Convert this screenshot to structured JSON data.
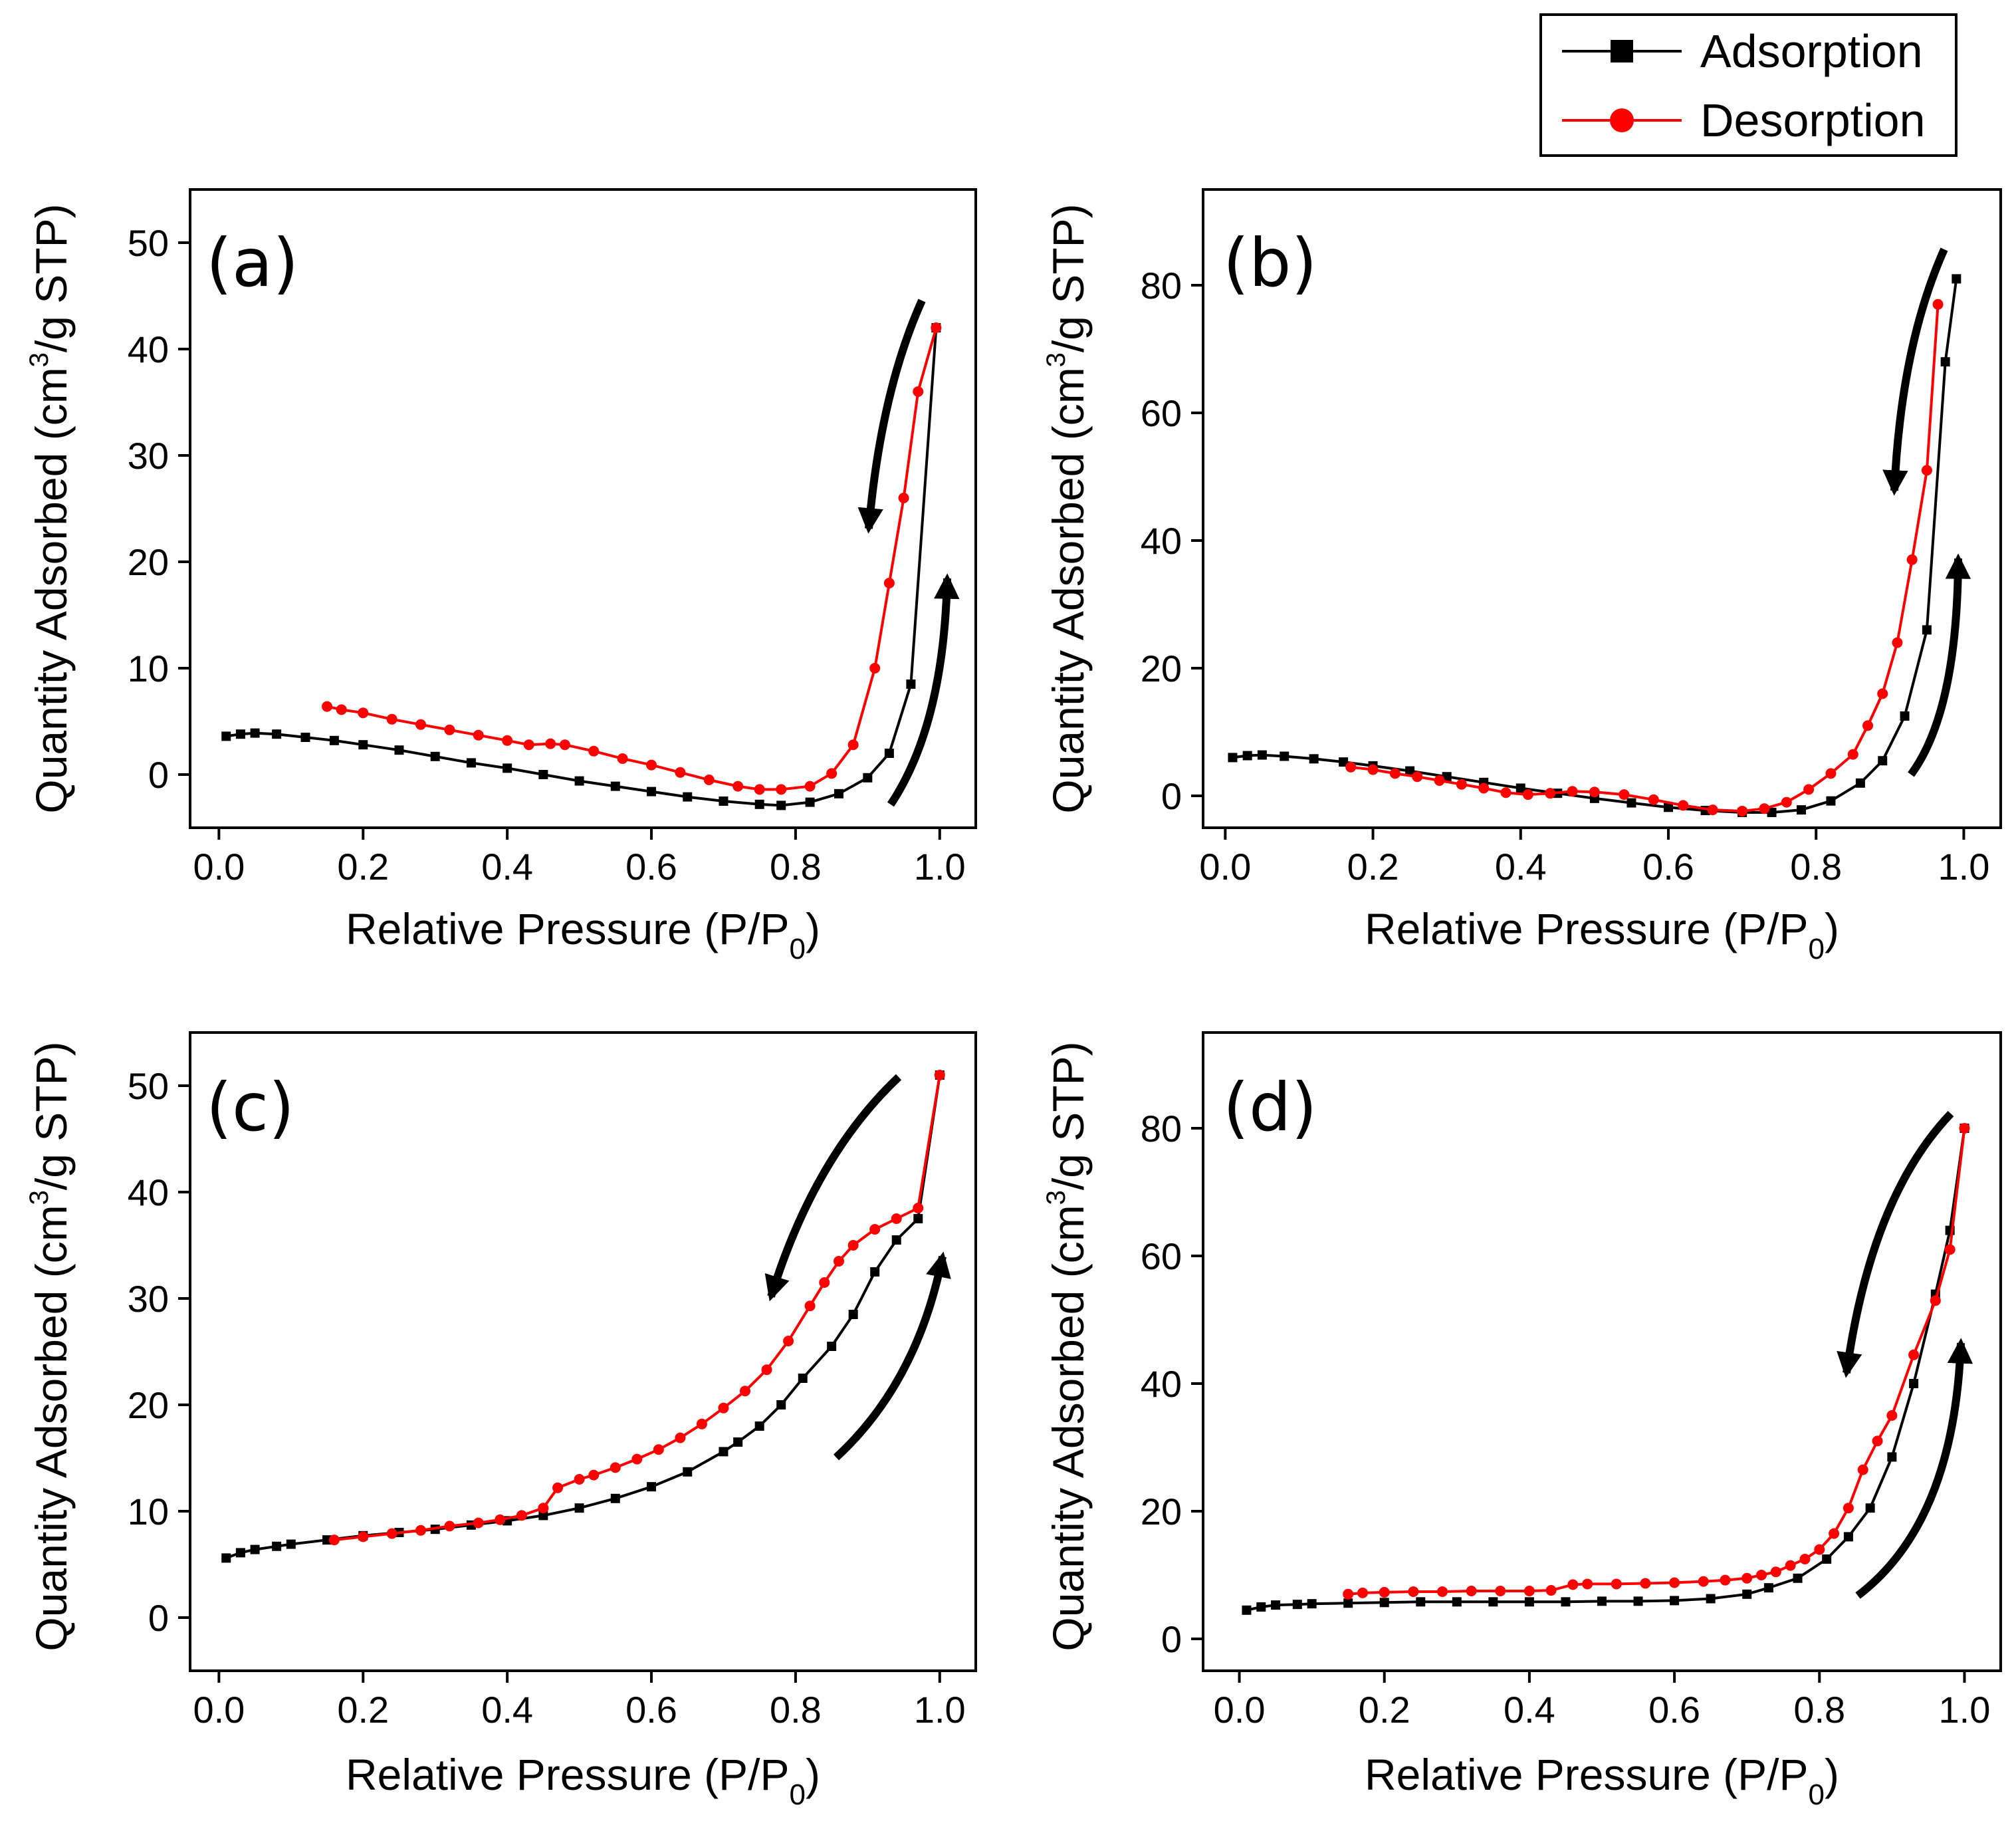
{
  "legend": {
    "items": [
      {
        "label": "Adsorption",
        "color": "#000000",
        "marker": "square"
      },
      {
        "label": "Desorption",
        "color": "#ff0000",
        "marker": "circle"
      }
    ]
  },
  "axis_text": {
    "xlabel_main": "Relative Pressure (P/P",
    "xlabel_sub": "0",
    "xlabel_end": ")",
    "ylabel_main": "Quantity Adsorbed (cm",
    "ylabel_sup": "3",
    "ylabel_end": "/g STP)"
  },
  "chart_data": [
    {
      "type": "line",
      "panel": "(a)",
      "xlabel": "Relative Pressure (P/P0)",
      "ylabel": "Quantity Adsorbed (cm3/g STP)",
      "xlim": [
        -0.04,
        1.05
      ],
      "ylim": [
        -5,
        55
      ],
      "xticks": [
        "0.0",
        "0.2",
        "0.4",
        "0.6",
        "0.8",
        "1.0"
      ],
      "yticks": [
        "0",
        "10",
        "20",
        "30",
        "40",
        "50"
      ],
      "legend": "top-right",
      "series": [
        {
          "name": "Adsorption",
          "color": "#000000",
          "marker": "square",
          "x": [
            0.01,
            0.03,
            0.05,
            0.08,
            0.12,
            0.16,
            0.2,
            0.25,
            0.3,
            0.35,
            0.4,
            0.45,
            0.5,
            0.55,
            0.6,
            0.65,
            0.7,
            0.75,
            0.78,
            0.82,
            0.86,
            0.9,
            0.93,
            0.96,
            0.995
          ],
          "y": [
            3.6,
            3.8,
            3.9,
            3.8,
            3.5,
            3.2,
            2.8,
            2.3,
            1.7,
            1.1,
            0.6,
            0.0,
            -0.6,
            -1.1,
            -1.6,
            -2.1,
            -2.5,
            -2.8,
            -2.9,
            -2.6,
            -1.8,
            -0.3,
            2.0,
            8.5,
            42
          ]
        },
        {
          "name": "Desorption",
          "color": "#ff0000",
          "marker": "circle",
          "x": [
            0.995,
            0.97,
            0.95,
            0.93,
            0.91,
            0.88,
            0.85,
            0.82,
            0.78,
            0.75,
            0.72,
            0.68,
            0.64,
            0.6,
            0.56,
            0.52,
            0.48,
            0.46,
            0.43,
            0.4,
            0.36,
            0.32,
            0.28,
            0.24,
            0.2,
            0.17,
            0.15
          ],
          "y": [
            42,
            36,
            26,
            18,
            10,
            2.8,
            0.1,
            -1.1,
            -1.4,
            -1.4,
            -1.1,
            -0.5,
            0.2,
            0.9,
            1.5,
            2.2,
            2.8,
            2.9,
            2.8,
            3.2,
            3.7,
            4.2,
            4.7,
            5.2,
            5.8,
            6.1,
            6.4
          ]
        }
      ]
    },
    {
      "type": "line",
      "panel": "(b)",
      "xlabel": "Relative Pressure (P/P0)",
      "ylabel": "Quantity Adsorbed (cm3/g STP)",
      "xlim": [
        -0.03,
        1.05
      ],
      "ylim": [
        -5,
        95
      ],
      "xticks": [
        "0.0",
        "0.2",
        "0.4",
        "0.6",
        "0.8",
        "1.0"
      ],
      "yticks": [
        "0",
        "20",
        "40",
        "60",
        "80"
      ],
      "series": [
        {
          "name": "Adsorption",
          "color": "#000000",
          "marker": "square",
          "x": [
            0.01,
            0.03,
            0.05,
            0.08,
            0.12,
            0.16,
            0.2,
            0.25,
            0.3,
            0.35,
            0.4,
            0.45,
            0.5,
            0.55,
            0.6,
            0.65,
            0.7,
            0.74,
            0.78,
            0.82,
            0.86,
            0.89,
            0.92,
            0.95,
            0.975,
            0.99
          ],
          "y": [
            6.0,
            6.3,
            6.4,
            6.2,
            5.8,
            5.3,
            4.7,
            3.9,
            3.0,
            2.1,
            1.2,
            0.4,
            -0.4,
            -1.1,
            -1.8,
            -2.3,
            -2.6,
            -2.6,
            -2.2,
            -0.8,
            2.0,
            5.5,
            12.5,
            26,
            68,
            81
          ]
        },
        {
          "name": "Desorption",
          "color": "#ff0000",
          "marker": "circle",
          "x": [
            0.965,
            0.95,
            0.93,
            0.91,
            0.89,
            0.87,
            0.85,
            0.82,
            0.79,
            0.76,
            0.73,
            0.7,
            0.66,
            0.62,
            0.58,
            0.54,
            0.5,
            0.47,
            0.44,
            0.41,
            0.38,
            0.35,
            0.32,
            0.29,
            0.26,
            0.23,
            0.2,
            0.17
          ],
          "y": [
            77,
            51,
            37,
            24,
            16,
            11,
            6.5,
            3.5,
            1.0,
            -1.0,
            -2.0,
            -2.4,
            -2.2,
            -1.5,
            -0.6,
            0.2,
            0.6,
            0.7,
            0.4,
            0.2,
            0.5,
            1.2,
            1.8,
            2.4,
            3.0,
            3.5,
            4.1,
            4.5
          ]
        }
      ]
    },
    {
      "type": "line",
      "panel": "(c)",
      "xlabel": "Relative Pressure (P/P0)",
      "ylabel": "Quantity Adsorbed (cm3/g STP)",
      "xlim": [
        -0.04,
        1.05
      ],
      "ylim": [
        -5,
        55
      ],
      "xticks": [
        "0.0",
        "0.2",
        "0.4",
        "0.6",
        "0.8",
        "1.0"
      ],
      "yticks": [
        "0",
        "10",
        "20",
        "30",
        "40",
        "50"
      ],
      "series": [
        {
          "name": "Adsorption",
          "color": "#000000",
          "marker": "square",
          "x": [
            0.01,
            0.03,
            0.05,
            0.08,
            0.1,
            0.15,
            0.2,
            0.25,
            0.3,
            0.35,
            0.4,
            0.45,
            0.5,
            0.55,
            0.6,
            0.65,
            0.7,
            0.72,
            0.75,
            0.78,
            0.81,
            0.85,
            0.88,
            0.91,
            0.94,
            0.97,
            1.0
          ],
          "y": [
            5.6,
            6.1,
            6.4,
            6.7,
            6.9,
            7.3,
            7.7,
            8.0,
            8.3,
            8.7,
            9.1,
            9.6,
            10.3,
            11.2,
            12.3,
            13.7,
            15.6,
            16.5,
            18.0,
            20.0,
            22.5,
            25.5,
            28.5,
            32.5,
            35.5,
            37.5,
            51
          ]
        },
        {
          "name": "Desorption",
          "color": "#ff0000",
          "marker": "circle",
          "x": [
            1.0,
            0.97,
            0.94,
            0.91,
            0.88,
            0.86,
            0.84,
            0.82,
            0.79,
            0.76,
            0.73,
            0.7,
            0.67,
            0.64,
            0.61,
            0.58,
            0.55,
            0.52,
            0.5,
            0.47,
            0.45,
            0.42,
            0.39,
            0.36,
            0.32,
            0.28,
            0.24,
            0.2,
            0.16
          ],
          "y": [
            51,
            38.5,
            37.5,
            36.5,
            35.0,
            33.5,
            31.5,
            29.3,
            26.0,
            23.3,
            21.3,
            19.7,
            18.2,
            16.9,
            15.8,
            14.9,
            14.1,
            13.4,
            13.0,
            12.2,
            10.3,
            9.6,
            9.2,
            8.9,
            8.6,
            8.2,
            7.9,
            7.6,
            7.3
          ]
        }
      ]
    },
    {
      "type": "line",
      "panel": "(d)",
      "xlabel": "Relative Pressure (P/P0)",
      "ylabel": "Quantity Adsorbed (cm3/g STP)",
      "xlim": [
        -0.05,
        1.05
      ],
      "ylim": [
        -5,
        95
      ],
      "xticks": [
        "0.0",
        "0.2",
        "0.4",
        "0.6",
        "0.8",
        "1.0"
      ],
      "yticks": [
        "0",
        "20",
        "40",
        "60",
        "80"
      ],
      "series": [
        {
          "name": "Adsorption",
          "color": "#000000",
          "marker": "square",
          "x": [
            0.01,
            0.03,
            0.05,
            0.08,
            0.1,
            0.15,
            0.2,
            0.25,
            0.3,
            0.35,
            0.4,
            0.45,
            0.5,
            0.55,
            0.6,
            0.65,
            0.7,
            0.73,
            0.77,
            0.81,
            0.84,
            0.87,
            0.9,
            0.93,
            0.96,
            0.98,
            1.0
          ],
          "y": [
            4.5,
            5.0,
            5.3,
            5.4,
            5.5,
            5.6,
            5.7,
            5.8,
            5.8,
            5.8,
            5.8,
            5.8,
            5.9,
            5.9,
            6.0,
            6.3,
            7.0,
            8.0,
            9.5,
            12.5,
            16,
            20.5,
            28.5,
            40,
            54,
            64,
            80
          ]
        },
        {
          "name": "Desorption",
          "color": "#ff0000",
          "marker": "circle",
          "x": [
            1.0,
            0.98,
            0.96,
            0.93,
            0.9,
            0.88,
            0.86,
            0.84,
            0.82,
            0.8,
            0.78,
            0.76,
            0.74,
            0.72,
            0.7,
            0.67,
            0.64,
            0.6,
            0.56,
            0.52,
            0.48,
            0.46,
            0.43,
            0.4,
            0.36,
            0.32,
            0.28,
            0.24,
            0.2,
            0.17,
            0.15
          ],
          "y": [
            80,
            61,
            53,
            44.5,
            35,
            31,
            26.5,
            20.5,
            16.5,
            14.0,
            12.5,
            11.5,
            10.5,
            10.0,
            9.5,
            9.2,
            9.0,
            8.8,
            8.7,
            8.6,
            8.6,
            8.5,
            7.6,
            7.5,
            7.5,
            7.5,
            7.4,
            7.4,
            7.3,
            7.2,
            7.0
          ]
        }
      ]
    }
  ]
}
